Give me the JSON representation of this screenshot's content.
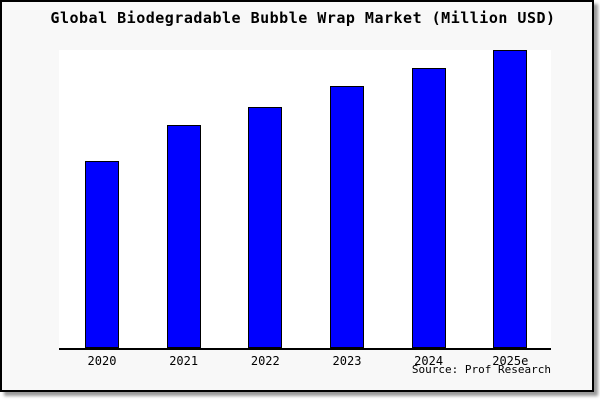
{
  "page": {
    "background": "#f8f8f8",
    "border_color": "#000000",
    "shadow_color": "#9a9a9a"
  },
  "chart_data": {
    "type": "bar",
    "title": "Global Biodegradable Bubble Wrap Market (Million USD)",
    "categories": [
      "2020",
      "2021",
      "2022",
      "2023",
      "2024",
      "2025e"
    ],
    "values": [
      63,
      75,
      81,
      88,
      94,
      100
    ],
    "xlabel": "",
    "ylabel": "",
    "ylim": [
      0,
      100
    ],
    "y_axis_shown": false,
    "grid": false,
    "legend": false,
    "bar_color": "#0000ff",
    "bar_border_color": "#000000",
    "plot_background": "#ffffff",
    "axis_color": "#000000"
  },
  "footer": {
    "source_label": "Source: Prof Research"
  }
}
